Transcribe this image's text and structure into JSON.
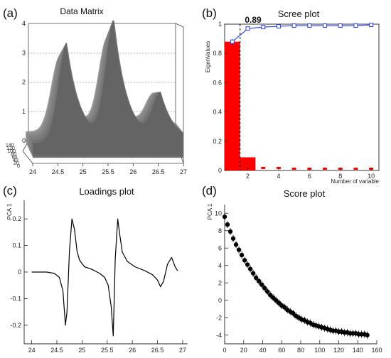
{
  "figure": {
    "panels": [
      "(a)",
      "(b)",
      "(c)",
      "(d)"
    ]
  },
  "chart_data": [
    {
      "panel": "(a)",
      "type": "area",
      "title": "Data Matrix",
      "xlabel": "",
      "ylabel": "",
      "xlim": [
        24,
        27
      ],
      "zlim": [
        0,
        4
      ],
      "x_ticks": [
        "24",
        "24.5",
        "25",
        "25.5",
        "26",
        "26.5",
        "27"
      ],
      "z_ticks": [
        "0",
        "1",
        "2",
        "3",
        "4"
      ],
      "depth_ticks": [
        "0",
        "20",
        "40",
        "60",
        "80",
        "100",
        "120",
        "140"
      ],
      "peaks": [
        {
          "x": 24.68,
          "height": 3.0
        },
        {
          "x": 25.62,
          "height": 3.6
        },
        {
          "x": 26.55,
          "height": 1.4
        }
      ],
      "color": "#6e6e6e"
    },
    {
      "panel": "(b)",
      "type": "bar",
      "title": "Scree plot",
      "xlabel": "Number of variable",
      "ylabel": "EigenValues",
      "ylim": [
        0,
        1
      ],
      "xlim": [
        0.5,
        10.5
      ],
      "x_ticks": [
        "2",
        "4",
        "6",
        "8",
        "10"
      ],
      "y_ticks": [
        "0",
        "0.2",
        "0.4",
        "0.6",
        "0.8",
        "1"
      ],
      "annotation": "0.89",
      "categories": [
        1,
        2,
        3,
        4,
        5,
        6,
        7,
        8,
        9,
        10
      ],
      "series": [
        {
          "kind": "bar",
          "values": [
            0.88,
            0.09,
            0.01,
            0.01,
            0.005,
            0.005,
            0.005,
            0.005,
            0.005,
            0.005
          ],
          "color": "#ff0000"
        },
        {
          "kind": "line",
          "values": [
            0.88,
            0.97,
            0.98,
            0.985,
            0.99,
            0.99,
            0.99,
            0.99,
            0.99,
            0.995
          ],
          "color": "#2a3fd6"
        }
      ]
    },
    {
      "panel": "(c)",
      "type": "line",
      "title": "Loadings plot",
      "xlabel": "",
      "ylabel": "PCA 1",
      "xlim": [
        23.85,
        27.1
      ],
      "ylim": [
        -0.27,
        0.27
      ],
      "x_ticks": [
        "24",
        "24.5",
        "25",
        "25.5",
        "26",
        "26.5",
        "27"
      ],
      "y_ticks": [
        "-0.2",
        "-0.1",
        "0",
        "0.1",
        "0.2"
      ],
      "x": [
        24.0,
        24.3,
        24.45,
        24.55,
        24.62,
        24.67,
        24.7,
        24.75,
        24.8,
        24.85,
        24.9,
        24.95,
        25.05,
        25.2,
        25.35,
        25.45,
        25.52,
        25.58,
        25.62,
        25.66,
        25.71,
        25.75,
        25.8,
        25.9,
        26.05,
        26.25,
        26.4,
        26.5,
        26.56,
        26.62,
        26.7,
        26.78,
        26.85,
        26.9
      ],
      "y": [
        0.0,
        0.0,
        -0.005,
        -0.02,
        -0.07,
        -0.2,
        -0.15,
        0.08,
        0.2,
        0.16,
        0.08,
        0.045,
        0.02,
        0.01,
        -0.005,
        -0.02,
        -0.05,
        -0.13,
        -0.24,
        0.05,
        0.2,
        0.14,
        0.075,
        0.04,
        0.02,
        0.005,
        -0.01,
        -0.03,
        -0.055,
        -0.035,
        0.03,
        0.055,
        0.02,
        0.005
      ],
      "color": "#000000"
    },
    {
      "panel": "(d)",
      "type": "scatter",
      "title": "Score plot",
      "xlabel": "",
      "ylabel": "PCA 1",
      "xlim": [
        0,
        160
      ],
      "ylim": [
        -5,
        11
      ],
      "x_ticks": [
        "0",
        "20",
        "40",
        "60",
        "80",
        "100",
        "120",
        "140",
        "160"
      ],
      "y_ticks": [
        "-4",
        "-2",
        "0",
        "2",
        "4",
        "6",
        "8",
        "10"
      ],
      "x": [
        0,
        3,
        6,
        9,
        12,
        15,
        18,
        21,
        24,
        27,
        30,
        33,
        36,
        39,
        42,
        45,
        48,
        51,
        54,
        57,
        60,
        63,
        66,
        69,
        72,
        75,
        78,
        81,
        84,
        87,
        90,
        93,
        96,
        99,
        102,
        105,
        108,
        111,
        114,
        117,
        120,
        123,
        126,
        129,
        132,
        135,
        138,
        141,
        144,
        147,
        150
      ],
      "y": [
        9.6,
        8.7,
        7.9,
        7.1,
        6.4,
        5.8,
        5.2,
        4.6,
        4.1,
        3.6,
        3.1,
        2.6,
        2.2,
        1.8,
        1.4,
        1.0,
        0.6,
        0.3,
        0.0,
        -0.3,
        -0.6,
        -0.8,
        -1.1,
        -1.3,
        -1.5,
        -1.8,
        -2.0,
        -2.2,
        -2.3,
        -2.5,
        -2.6,
        -2.8,
        -2.9,
        -3.0,
        -3.1,
        -3.2,
        -3.3,
        -3.4,
        -3.5,
        -3.5,
        -3.6,
        -3.6,
        -3.7,
        -3.7,
        -3.8,
        -3.8,
        -3.8,
        -3.9,
        -3.9,
        -3.9,
        -4.0
      ],
      "color": "#000000"
    }
  ]
}
